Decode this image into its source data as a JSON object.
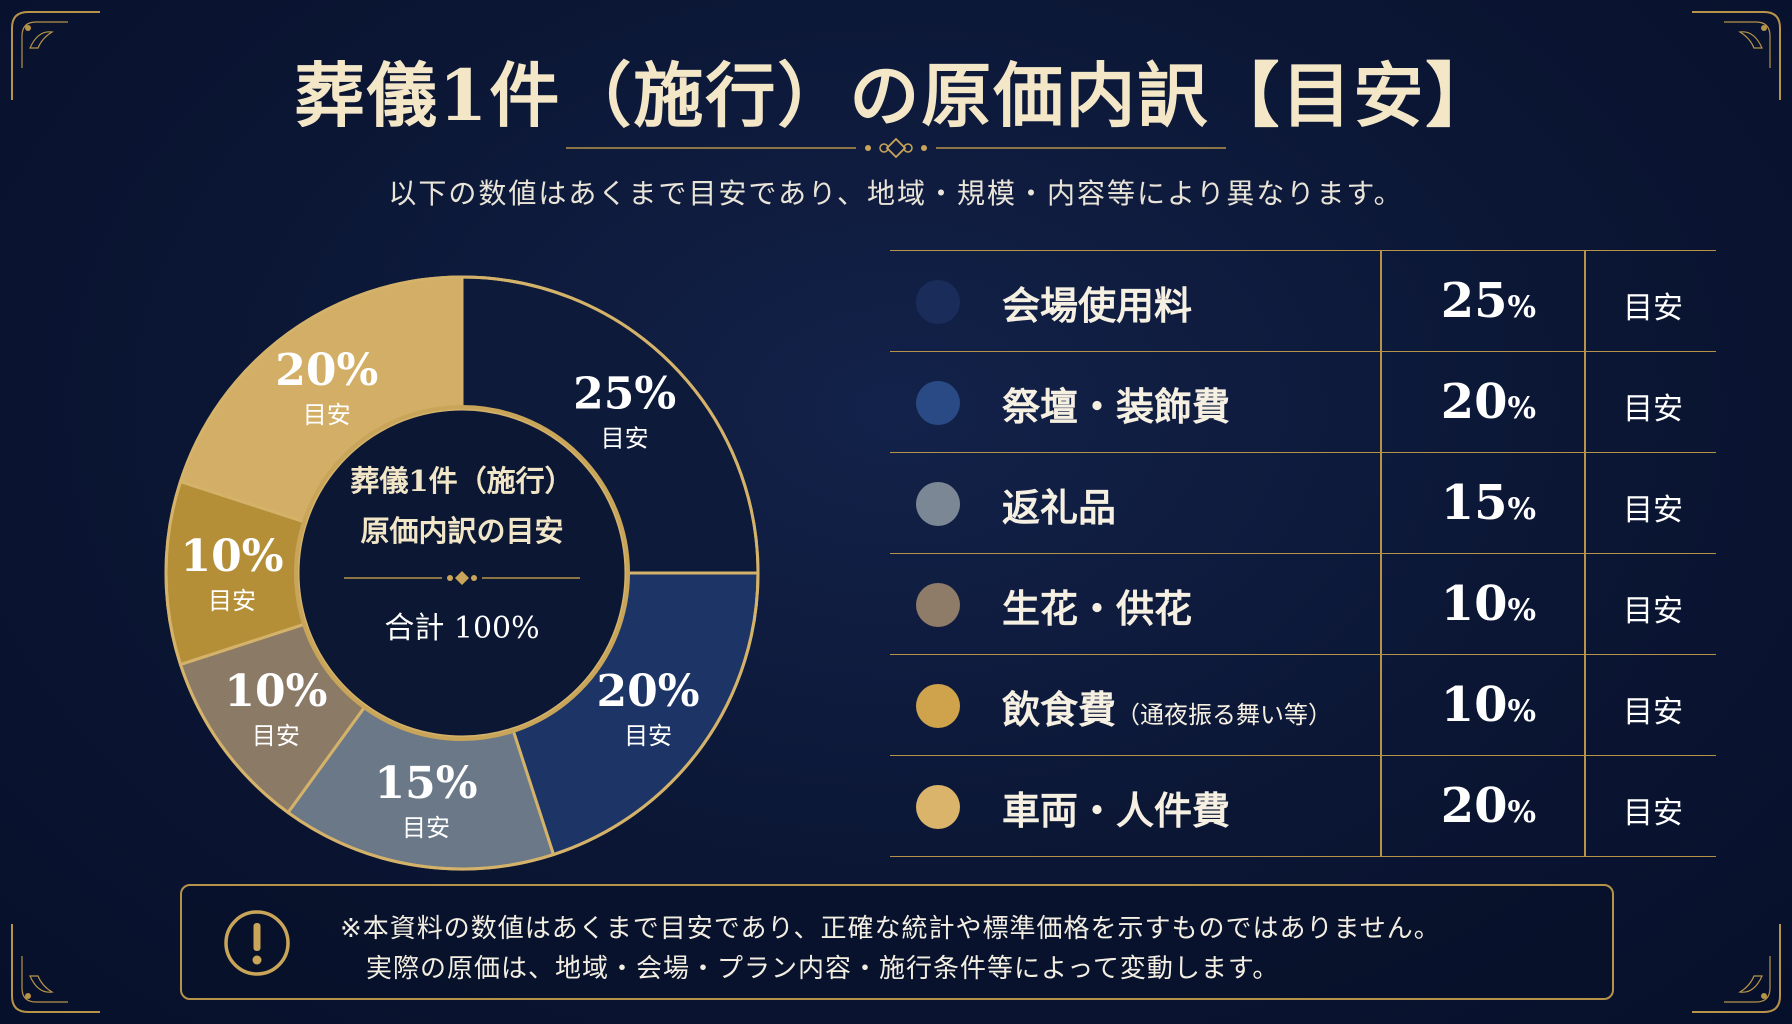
{
  "header": {
    "title": "葬儀1件（施行）の原価内訳【目安】",
    "subtitle": "以下の数値はあくまで目安であり、地域・規模・内容等により異なります。"
  },
  "center": {
    "line1": "葬儀1件（施行）",
    "line2": "原価内訳の目安",
    "total": "合計 100%"
  },
  "chart_data": {
    "type": "pie",
    "variant": "donut",
    "categories": [
      "会場使用料",
      "祭壇・装飾費",
      "返礼品",
      "生花・供花",
      "飲食費（通夜振る舞い等）",
      "車両・人件費"
    ],
    "values": [
      25,
      20,
      15,
      10,
      10,
      20
    ],
    "slice_labels": [
      "25%",
      "20%",
      "15%",
      "10%",
      "10%",
      "20%"
    ],
    "slice_tag": "目安",
    "colors": [
      "#0d1a3a",
      "#1c3566",
      "#6b7888",
      "#8b7a66",
      "#b48f38",
      "#d3ae66"
    ],
    "legend_placement": "right"
  },
  "table": {
    "rows": [
      {
        "name": "会場使用料",
        "note": "",
        "pct": "25",
        "sym": "%",
        "tag": "目安",
        "color": "#1a2d5a"
      },
      {
        "name": "祭壇・装飾費",
        "note": "",
        "pct": "20",
        "sym": "%",
        "tag": "目安",
        "color": "#2a4a86"
      },
      {
        "name": "返礼品",
        "note": "",
        "pct": "15",
        "sym": "%",
        "tag": "目安",
        "color": "#7c8796"
      },
      {
        "name": "生花・供花",
        "note": "",
        "pct": "10",
        "sym": "%",
        "tag": "目安",
        "color": "#8e7c68"
      },
      {
        "name": "飲食費",
        "note": "（通夜振る舞い等）",
        "pct": "10",
        "sym": "%",
        "tag": "目安",
        "color": "#cfa24c"
      },
      {
        "name": "車両・人件費",
        "note": "",
        "pct": "20",
        "sym": "%",
        "tag": "目安",
        "color": "#d9b46a"
      }
    ]
  },
  "notice": {
    "line1": "※本資料の数値はあくまで目安であり、正確な統計や標準価格を示すものではありません。",
    "line2": "実際の原価は、地域・会場・プラン内容・施行条件等によって変動します。",
    "icon": "exclamation-circle-icon"
  },
  "theme": {
    "gold": "#c9a55a",
    "navy": "#0b1632"
  }
}
